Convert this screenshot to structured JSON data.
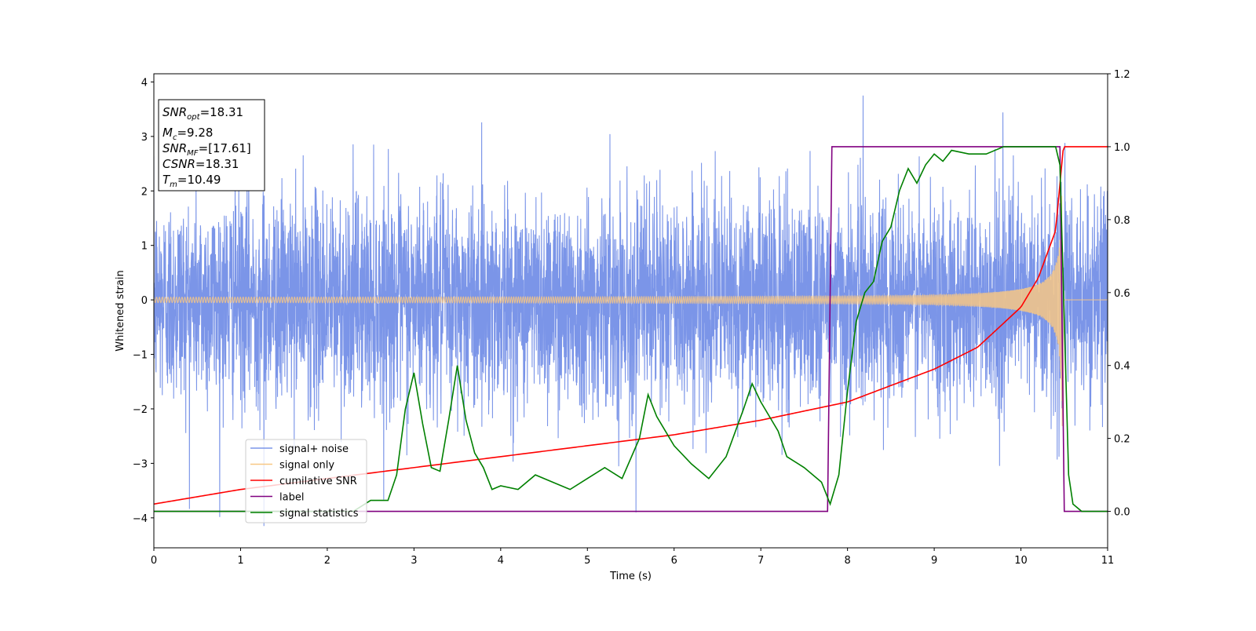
{
  "chart_data": {
    "type": "line",
    "xlabel": "Time (s)",
    "ylabel": "Whitened strain",
    "xlim": [
      0,
      11
    ],
    "ylim": [
      -4.55,
      4.15
    ],
    "y2lim": [
      -0.1,
      1.2
    ],
    "xticks": [
      "0",
      "1",
      "2",
      "3",
      "4",
      "5",
      "6",
      "7",
      "8",
      "9",
      "10",
      "11"
    ],
    "yticks": [
      "−4",
      "−3",
      "−2",
      "−1",
      "0",
      "1",
      "2",
      "3",
      "4"
    ],
    "y2ticks": [
      "0.0",
      "0.2",
      "0.4",
      "0.6",
      "0.8",
      "1.0",
      "1.2"
    ],
    "grid": false,
    "legend_loc": "lower left",
    "info_box": {
      "lines": [
        {
          "name": "SNR",
          "sub": "opt",
          "value": "=18.31"
        },
        {
          "name": "M",
          "sub": "c",
          "value": "=9.28"
        },
        {
          "name": "SNR",
          "sub": "MF",
          "value": "=[17.61]"
        },
        {
          "name": "CSNR",
          "sub": "",
          "value": "=18.31"
        },
        {
          "name": "T",
          "sub": "m",
          "value": "=10.49"
        }
      ]
    },
    "series": [
      {
        "name": "signal+ noise",
        "color": "#7b95e8",
        "axis": "left",
        "kind": "noise",
        "x_range": [
          0,
          11
        ],
        "noise_std": 0.95,
        "spikes": [
          {
            "x": 8.18,
            "y": 3.75
          },
          {
            "x": 5.56,
            "y": -3.9
          },
          {
            "x": 1.27,
            "y": -4.15
          }
        ]
      },
      {
        "name": "signal only",
        "color": "#f7c785",
        "axis": "left",
        "kind": "chirp",
        "x_range": [
          0,
          10.49
        ],
        "amplitude_start": 0.05,
        "amplitude_peak": 2.8
      },
      {
        "name": "cumilative SNR",
        "color": "#ff0000",
        "axis": "right",
        "x": [
          0,
          1,
          2,
          3,
          4,
          5,
          6,
          7,
          8,
          9,
          9.5,
          10,
          10.2,
          10.4,
          10.49,
          11
        ],
        "y": [
          0.02,
          0.06,
          0.09,
          0.12,
          0.15,
          0.18,
          0.21,
          0.25,
          0.3,
          0.39,
          0.45,
          0.56,
          0.64,
          0.77,
          1.0,
          1.0
        ]
      },
      {
        "name": "label",
        "color": "#800080",
        "axis": "right",
        "x": [
          0,
          7.77,
          7.82,
          10.45,
          10.5,
          11
        ],
        "y": [
          0,
          0,
          1,
          1,
          0,
          0
        ]
      },
      {
        "name": "signal statistics",
        "color": "#008000",
        "axis": "right",
        "x": [
          0,
          2.3,
          2.5,
          2.7,
          2.8,
          2.9,
          3.0,
          3.1,
          3.2,
          3.3,
          3.4,
          3.5,
          3.6,
          3.7,
          3.8,
          3.9,
          4.0,
          4.2,
          4.4,
          4.6,
          4.8,
          5.0,
          5.2,
          5.4,
          5.6,
          5.7,
          5.8,
          5.9,
          6.0,
          6.2,
          6.4,
          6.6,
          6.8,
          6.9,
          7.0,
          7.1,
          7.2,
          7.3,
          7.5,
          7.7,
          7.8,
          7.9,
          8.0,
          8.1,
          8.2,
          8.3,
          8.4,
          8.5,
          8.6,
          8.7,
          8.8,
          8.9,
          9.0,
          9.1,
          9.2,
          9.4,
          9.6,
          9.8,
          10.0,
          10.2,
          10.4,
          10.45,
          10.55,
          10.6,
          10.7,
          11
        ],
        "y": [
          0,
          0.0,
          0.03,
          0.03,
          0.1,
          0.28,
          0.38,
          0.24,
          0.12,
          0.11,
          0.25,
          0.4,
          0.25,
          0.16,
          0.12,
          0.06,
          0.07,
          0.06,
          0.1,
          0.08,
          0.06,
          0.09,
          0.12,
          0.09,
          0.2,
          0.32,
          0.26,
          0.22,
          0.18,
          0.13,
          0.09,
          0.15,
          0.28,
          0.35,
          0.3,
          0.26,
          0.22,
          0.15,
          0.12,
          0.08,
          0.02,
          0.1,
          0.33,
          0.52,
          0.6,
          0.63,
          0.74,
          0.78,
          0.88,
          0.94,
          0.9,
          0.95,
          0.98,
          0.96,
          0.99,
          0.98,
          0.98,
          1.0,
          1.0,
          1.0,
          1.0,
          0.95,
          0.1,
          0.02,
          0.0,
          0.0
        ]
      }
    ]
  }
}
